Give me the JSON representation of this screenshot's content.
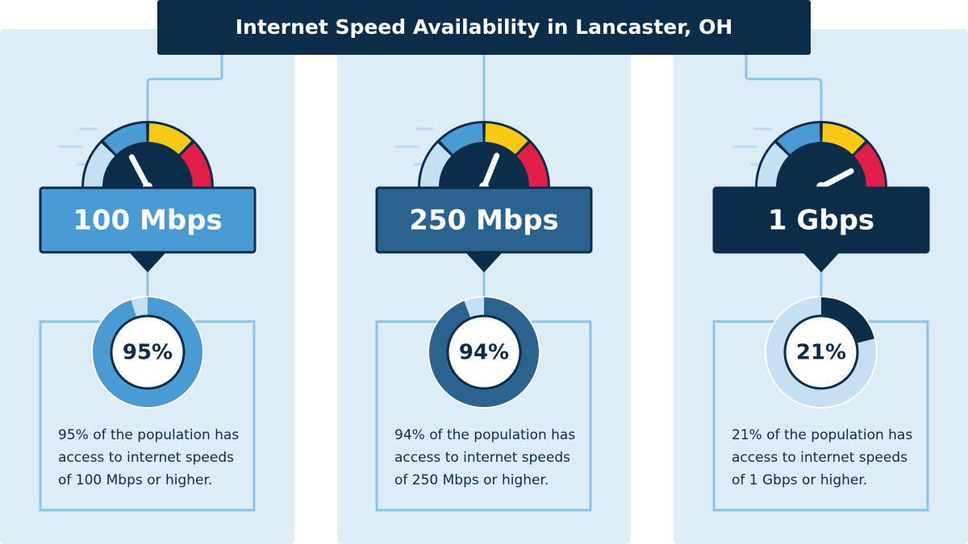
{
  "title": "Internet Speed Availability in Lancaster, OH",
  "chart_data": [
    {
      "type": "donut",
      "title": "100 Mbps",
      "values": [
        95
      ],
      "value_labels": [
        "95%"
      ],
      "color": "#4a9ad4",
      "description": [
        "95% of the population has",
        "access to internet speeds",
        "of 100 Mbps or higher."
      ]
    },
    {
      "type": "donut",
      "title": "250 Mbps",
      "values": [
        94
      ],
      "value_labels": [
        "94%"
      ],
      "color": "#2a6390",
      "description": [
        "94% of the population has",
        "access to internet speeds",
        "of 250 Mbps or higher."
      ]
    },
    {
      "type": "donut",
      "title": "1 Gbps",
      "values": [
        21
      ],
      "value_labels": [
        "21%"
      ],
      "color": "#0b2d4a",
      "description": [
        "21% of the population has",
        "access to internet speeds",
        "of 1 Gbps or higher."
      ]
    }
  ]
}
